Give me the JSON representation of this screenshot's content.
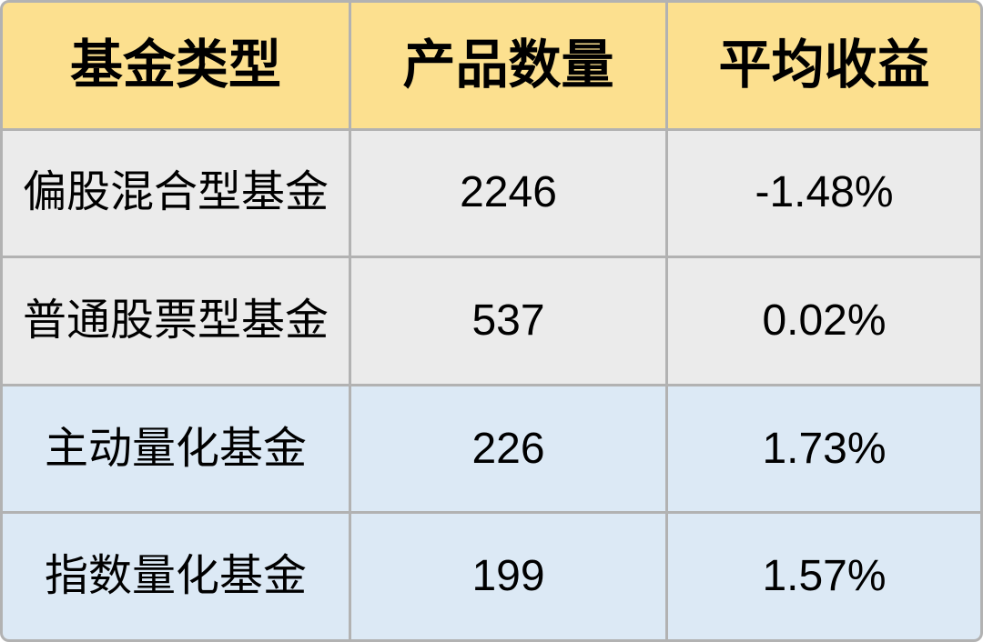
{
  "colors": {
    "header_bg": "#FCE08F",
    "row_gray_bg": "#EBEBEB",
    "row_blue_bg": "#DCE9F5",
    "border": "#B2B2B2",
    "text": "#000000"
  },
  "table": {
    "headers": {
      "fund_type": "基金类型",
      "product_count": "产品数量",
      "avg_return": "平均收益"
    },
    "rows": [
      {
        "fund_type": "偏股混合型基金",
        "product_count": "2246",
        "avg_return": "-1.48%",
        "row_bg": "gray"
      },
      {
        "fund_type": "普通股票型基金",
        "product_count": "537",
        "avg_return": "0.02%",
        "row_bg": "gray"
      },
      {
        "fund_type": "主动量化基金",
        "product_count": "226",
        "avg_return": "1.73%",
        "row_bg": "blue"
      },
      {
        "fund_type": "指数量化基金",
        "product_count": "199",
        "avg_return": "1.57%",
        "row_bg": "blue"
      }
    ]
  },
  "chart_data": {
    "type": "table",
    "columns": [
      "基金类型",
      "产品数量",
      "平均收益"
    ],
    "rows": [
      [
        "偏股混合型基金",
        2246,
        "-1.48%"
      ],
      [
        "普通股票型基金",
        537,
        "0.02%"
      ],
      [
        "主动量化基金",
        226,
        "1.73%"
      ],
      [
        "指数量化基金",
        199,
        "1.57%"
      ]
    ]
  }
}
